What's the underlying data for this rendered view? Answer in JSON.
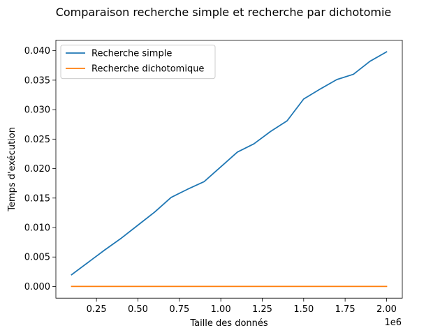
{
  "chart_data": {
    "type": "line",
    "title": "Comparaison recherche simple et recherche par dichotomie",
    "xlabel": "Taille des donnés",
    "ylabel": "Temps d'exécution",
    "x_offset_label": "1e6",
    "x_scale": 1000000,
    "x": [
      100000,
      200000,
      300000,
      400000,
      500000,
      600000,
      700000,
      800000,
      900000,
      1000000,
      1100000,
      1200000,
      1300000,
      1400000,
      1500000,
      1600000,
      1700000,
      1800000,
      1900000,
      2000000
    ],
    "series": [
      {
        "name": "Recherche simple",
        "color": "#1f77b4",
        "values": [
          0.002,
          0.0041,
          0.0062,
          0.0082,
          0.0104,
          0.0126,
          0.0151,
          0.0165,
          0.0178,
          0.0203,
          0.0228,
          0.0242,
          0.0263,
          0.0281,
          0.0318,
          0.0335,
          0.0351,
          0.036,
          0.0382,
          0.0398
        ]
      },
      {
        "name": "Recherche dichotomique",
        "color": "#ff7f0e",
        "values": [
          1e-05,
          1e-05,
          1e-05,
          1e-05,
          1e-05,
          1e-05,
          1e-05,
          1e-05,
          1e-05,
          1e-05,
          1e-05,
          1e-05,
          1e-05,
          1e-05,
          1e-05,
          1e-05,
          1e-05,
          1e-05,
          1e-05,
          1e-05
        ]
      }
    ],
    "xlim": [
      5000,
      2095000
    ],
    "ylim": [
      -0.00198,
      0.04178
    ],
    "x_ticks": [
      {
        "value": 250000,
        "label": "0.25"
      },
      {
        "value": 500000,
        "label": "0.50"
      },
      {
        "value": 750000,
        "label": "0.75"
      },
      {
        "value": 1000000,
        "label": "1.00"
      },
      {
        "value": 1250000,
        "label": "1.25"
      },
      {
        "value": 1500000,
        "label": "1.50"
      },
      {
        "value": 1750000,
        "label": "1.75"
      },
      {
        "value": 2000000,
        "label": "2.00"
      }
    ],
    "y_ticks": [
      {
        "value": 0.0,
        "label": "0.000"
      },
      {
        "value": 0.005,
        "label": "0.005"
      },
      {
        "value": 0.01,
        "label": "0.010"
      },
      {
        "value": 0.015,
        "label": "0.015"
      },
      {
        "value": 0.02,
        "label": "0.020"
      },
      {
        "value": 0.025,
        "label": "0.025"
      },
      {
        "value": 0.03,
        "label": "0.030"
      },
      {
        "value": 0.035,
        "label": "0.035"
      },
      {
        "value": 0.04,
        "label": "0.040"
      }
    ],
    "grid": false,
    "legend_position": "top-left"
  }
}
